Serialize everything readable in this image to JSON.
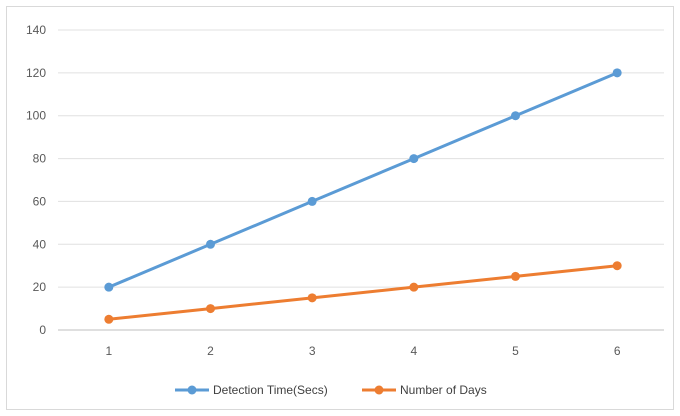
{
  "chart_data": {
    "type": "line",
    "title": "",
    "xlabel": "",
    "ylabel": "",
    "categories": [
      "1",
      "2",
      "3",
      "4",
      "5",
      "6"
    ],
    "ylim": [
      0,
      140
    ],
    "yticks": [
      0,
      20,
      40,
      60,
      80,
      100,
      120,
      140
    ],
    "grid": "horizontal",
    "legend_position": "bottom",
    "series": [
      {
        "name": "Detection Time(Secs)",
        "values": [
          20,
          40,
          60,
          80,
          100,
          120
        ],
        "color": "#5b9bd5"
      },
      {
        "name": "Number of Days",
        "values": [
          5,
          10,
          15,
          20,
          25,
          30
        ],
        "color": "#ed7d31"
      }
    ]
  }
}
